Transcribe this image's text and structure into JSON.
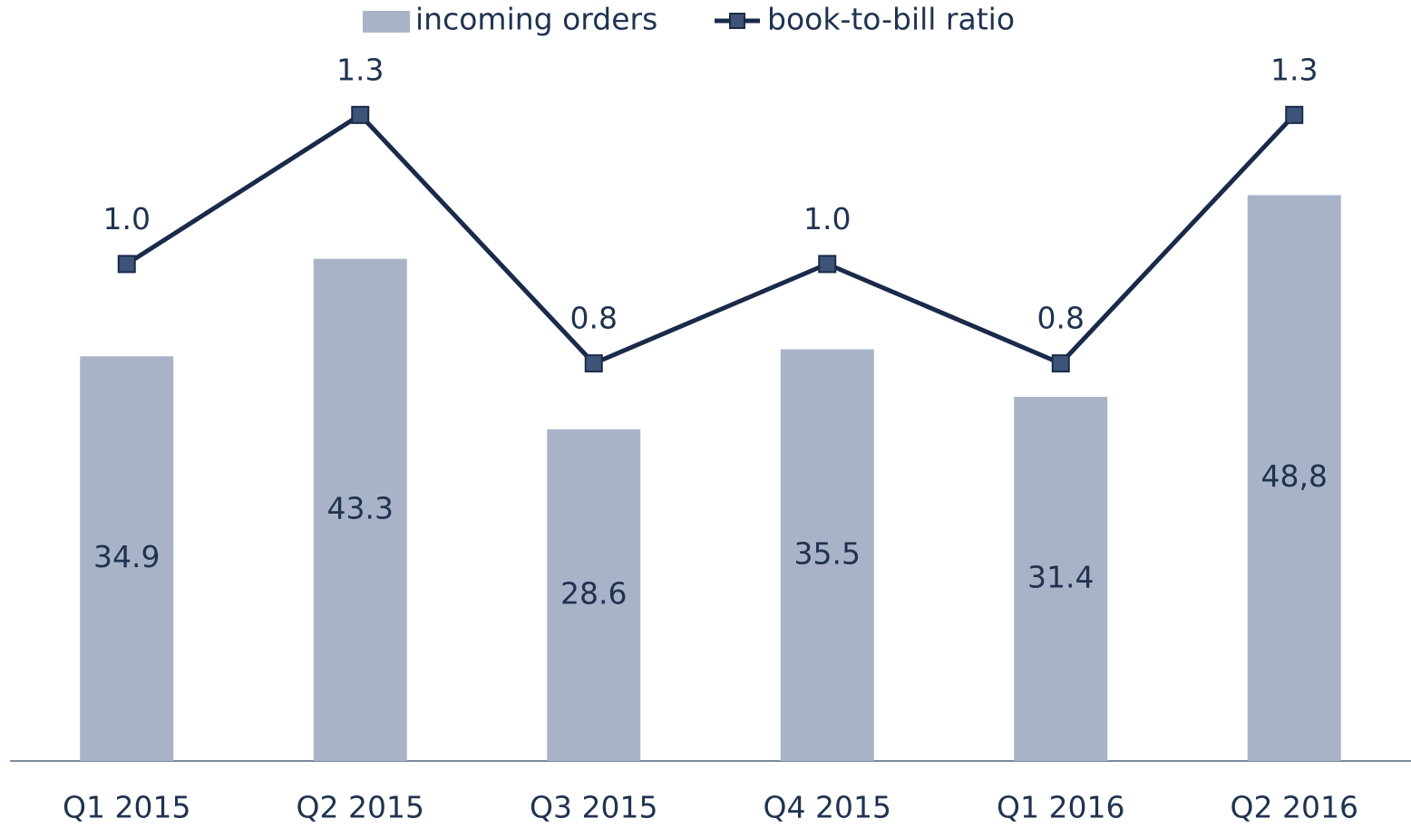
{
  "chart_data": {
    "type": "bar+line",
    "categories": [
      "Q1 2015",
      "Q2 2015",
      "Q3 2015",
      "Q4 2015",
      "Q1 2016",
      "Q2 2016"
    ],
    "series": [
      {
        "name": "incoming orders",
        "type": "bar",
        "color": "#a9b3c8",
        "values": [
          34.9,
          43.3,
          28.6,
          35.5,
          31.4,
          48.8
        ],
        "value_labels": [
          "34.9",
          "43.3",
          "28.6",
          "35.5",
          "31.4",
          "48,8"
        ]
      },
      {
        "name": "book-to-bill ratio",
        "type": "line",
        "axis": "y2",
        "color": "#1a2a4a",
        "marker_color": "#3d5478",
        "values": [
          1.0,
          1.3,
          0.8,
          1.0,
          0.8,
          1.3
        ],
        "value_labels": [
          "1.0",
          "1.3",
          "0.8",
          "1.0",
          "0.8",
          "1.3"
        ]
      }
    ],
    "ylim": [
      0,
      60
    ],
    "y2lim": [
      0,
      1.4
    ],
    "legend": "top"
  }
}
